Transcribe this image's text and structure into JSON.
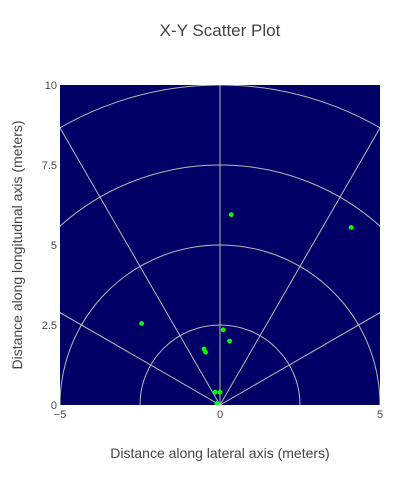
{
  "chart_data": {
    "type": "scatter",
    "title": "X-Y Scatter Plot",
    "xlabel": "Distance along lateral axis (meters)",
    "ylabel": "Distance along longitudnal axis (meters)",
    "xlim": [
      -5,
      5
    ],
    "ylim": [
      0,
      10
    ],
    "x_ticks": [
      {
        "value": -5,
        "label": "−5"
      },
      {
        "value": 0,
        "label": "0"
      },
      {
        "value": 5,
        "label": "5"
      }
    ],
    "y_ticks": [
      {
        "value": 0,
        "label": "0"
      },
      {
        "value": 2.5,
        "label": "2.5"
      },
      {
        "value": 5,
        "label": "5"
      },
      {
        "value": 7.5,
        "label": "7.5"
      },
      {
        "value": 10,
        "label": "10"
      }
    ],
    "grid": true,
    "grid_style": "polar range rings and sector rays centered at origin",
    "range_rings": [
      2.5,
      5,
      7.5,
      10
    ],
    "ray_angles_deg_from_y_axis": [
      -60,
      -30,
      0,
      30,
      60
    ],
    "colors": {
      "plot_background": "#000066",
      "grid": "#b8b8b8",
      "points": "#00ff00"
    },
    "points": [
      {
        "x": 0.35,
        "y": 5.95
      },
      {
        "x": 4.1,
        "y": 5.55
      },
      {
        "x": -2.45,
        "y": 2.55
      },
      {
        "x": 0.1,
        "y": 2.35
      },
      {
        "x": 0.3,
        "y": 2.0
      },
      {
        "x": -0.5,
        "y": 1.75
      },
      {
        "x": -0.45,
        "y": 1.65
      },
      {
        "x": -0.15,
        "y": 0.4
      },
      {
        "x": 0.0,
        "y": 0.4
      },
      {
        "x": -0.1,
        "y": 0.05
      }
    ]
  }
}
